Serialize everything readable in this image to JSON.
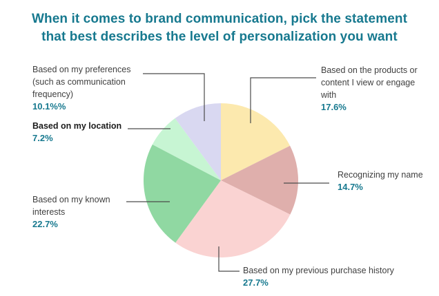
{
  "title": {
    "line1": "When it comes to brand communication, pick the statement",
    "line2": "that best describes the level of personalization you want"
  },
  "colors": {
    "title_text": "#17798F",
    "value_text": "#17798F",
    "label_text": "#3F3F3F",
    "location_label_text": "#1C1C1C",
    "callout_line": "#4A4A4A",
    "background": "#FFFFFF"
  },
  "chart_data": {
    "type": "pie",
    "title": "When it comes to brand communication, pick the statement that best describes the level of personalization you want",
    "legend_position": "callout-labels",
    "start_angle_deg": 0,
    "direction": "clockwise",
    "slices": [
      {
        "id": "products",
        "label": "Based on the products or content I view or engage with",
        "value_display": "17.6%",
        "percent": 17.6,
        "color": "#FCE9AE"
      },
      {
        "id": "recognizing-name",
        "label": "Recognizing my name",
        "value_display": "14.7%",
        "percent": 14.7,
        "color": "#DFAFAC"
      },
      {
        "id": "purchase-history",
        "label": "Based on my previous purchase history",
        "value_display": "27.7%",
        "percent": 27.7,
        "color": "#FAD3D2"
      },
      {
        "id": "known-interests",
        "label": "Based on my known interests",
        "value_display": "22.7%",
        "percent": 22.7,
        "color": "#90D8A2"
      },
      {
        "id": "location",
        "label": "Based on my location",
        "value_display": "7.2%",
        "percent": 7.2,
        "color": "#C7F5D3"
      },
      {
        "id": "preferences",
        "label": "Based on my preferences (such as communication frequency)",
        "value_display": "10.1%%",
        "percent": 10.1,
        "color": "#D9D8F1"
      }
    ]
  }
}
